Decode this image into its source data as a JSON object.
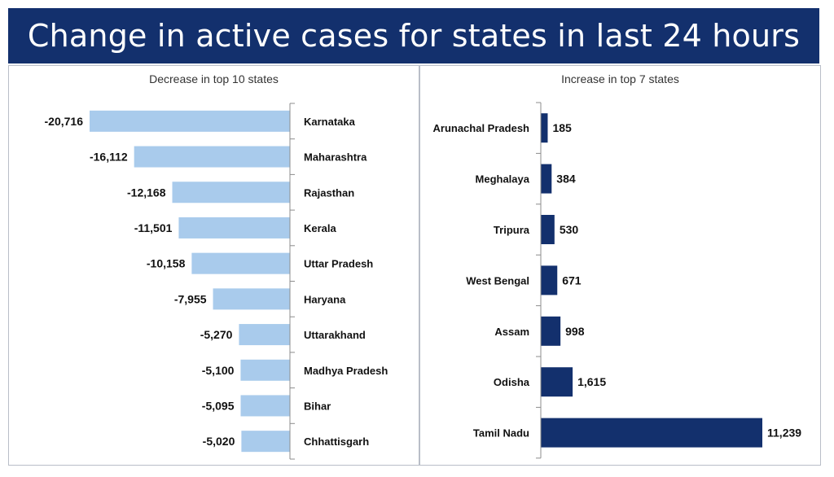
{
  "title": "Change in active cases for states in last 24 hours",
  "colors": {
    "banner": "#13306d",
    "decrease_bar": "#a9cbec",
    "increase_bar": "#13306d"
  },
  "chart_data": [
    {
      "type": "bar",
      "orientation": "horizontal",
      "title": "Decrease in top 10 states",
      "categories": [
        "Karnataka",
        "Maharashtra",
        "Rajasthan",
        "Kerala",
        "Uttar Pradesh",
        "Haryana",
        "Uttarakhand",
        "Madhya Pradesh",
        "Bihar",
        "Chhattisgarh"
      ],
      "values": [
        -20716,
        -16112,
        -12168,
        -11501,
        -10158,
        -7955,
        -5270,
        -5100,
        -5095,
        -5020
      ],
      "value_labels": [
        "-20,716",
        "-16,112",
        "-12,168",
        "-11,501",
        "-10,158",
        "-7,955",
        "-5,270",
        "-5,100",
        "-5,095",
        "-5,020"
      ],
      "xlim": [
        -20716,
        0
      ]
    },
    {
      "type": "bar",
      "orientation": "horizontal",
      "title": "Increase in top 7 states",
      "categories": [
        "Arunachal Pradesh",
        "Meghalaya",
        "Tripura",
        "West Bengal",
        "Assam",
        "Odisha",
        "Tamil Nadu"
      ],
      "values": [
        185,
        384,
        530,
        671,
        998,
        1615,
        11239
      ],
      "value_labels": [
        "185",
        "384",
        "530",
        "671",
        "998",
        "1,615",
        "11,239"
      ],
      "xlim": [
        0,
        11239
      ]
    }
  ]
}
